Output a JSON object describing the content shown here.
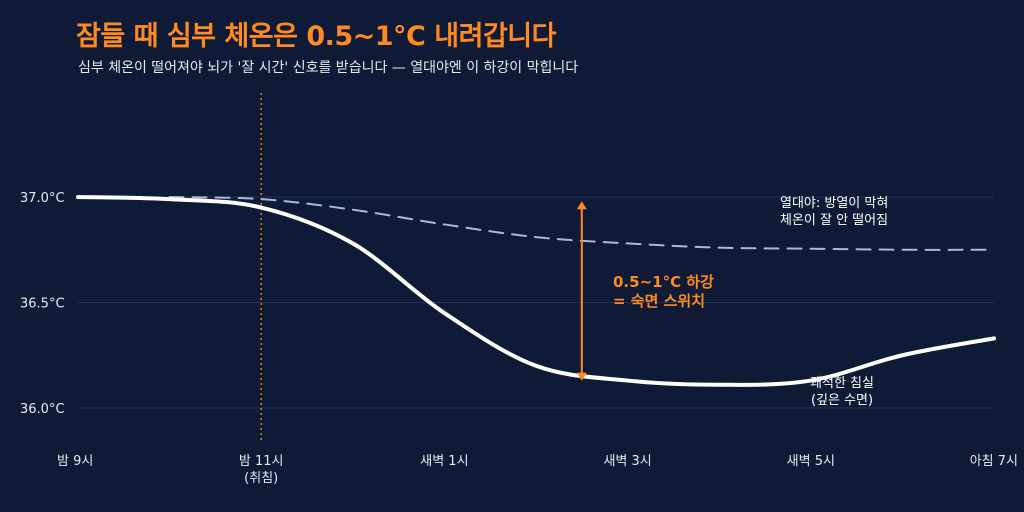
{
  "title": "잠들 때 심부 체온은 0.5~1°C 내려갑니다",
  "subtitle": "심부 체온이 떨어져야 뇌가 '잘 시간' 신호를 받습니다 — 열대야엔 이 하강이 막힙니다",
  "chart_data": {
    "type": "line",
    "ylim": [
      35.75,
      37.0
    ],
    "y_ticks": [
      {
        "value": 37.0,
        "label": "37.0°C"
      },
      {
        "value": 36.5,
        "label": "36.5°C"
      },
      {
        "value": 36.0,
        "label": "36.0°C"
      }
    ],
    "x_ticks": [
      {
        "value": 0,
        "label": "밤 9시",
        "sub": ""
      },
      {
        "value": 2,
        "label": "밤 11시",
        "sub": "(취침)"
      },
      {
        "value": 4,
        "label": "새벽 1시",
        "sub": ""
      },
      {
        "value": 6,
        "label": "새벽 3시",
        "sub": ""
      },
      {
        "value": 8,
        "label": "새벽 5시",
        "sub": ""
      },
      {
        "value": 10,
        "label": "아침 7시",
        "sub": ""
      }
    ],
    "xlim": [
      0,
      10
    ],
    "grid": true,
    "series": [
      {
        "style": "solid",
        "color": "#ffffff",
        "points": [
          [
            0,
            37.0
          ],
          [
            1,
            36.99
          ],
          [
            2,
            36.95
          ],
          [
            3,
            36.78
          ],
          [
            4,
            36.45
          ],
          [
            5,
            36.2
          ],
          [
            6,
            36.13
          ],
          [
            7,
            36.11
          ],
          [
            8,
            36.13
          ],
          [
            9,
            36.25
          ],
          [
            10,
            36.33
          ]
        ]
      },
      {
        "style": "dashed",
        "color": "#aab8d8",
        "points": [
          [
            1,
            37.0
          ],
          [
            2,
            36.99
          ],
          [
            3,
            36.94
          ],
          [
            4,
            36.87
          ],
          [
            5,
            36.81
          ],
          [
            6,
            36.78
          ],
          [
            7,
            36.76
          ],
          [
            8,
            36.755
          ],
          [
            9,
            36.75
          ],
          [
            10,
            36.75
          ]
        ]
      }
    ],
    "bedtime_x": 2,
    "drop_arrow": {
      "x": 5.5,
      "from": 36.98,
      "to": 36.13,
      "color": "#ff8a1f"
    },
    "annotations": [
      {
        "lines": [
          "0.5~1°C 하강",
          "= 숙면 스위치"
        ],
        "style": "orange"
      },
      {
        "lines": [
          "열대야: 방열이 막혀",
          "체온이 잘 안 떨어짐"
        ],
        "style": "white"
      },
      {
        "lines": [
          "쾌적한 침실",
          "(깊은 수면)"
        ],
        "style": "white"
      }
    ]
  }
}
